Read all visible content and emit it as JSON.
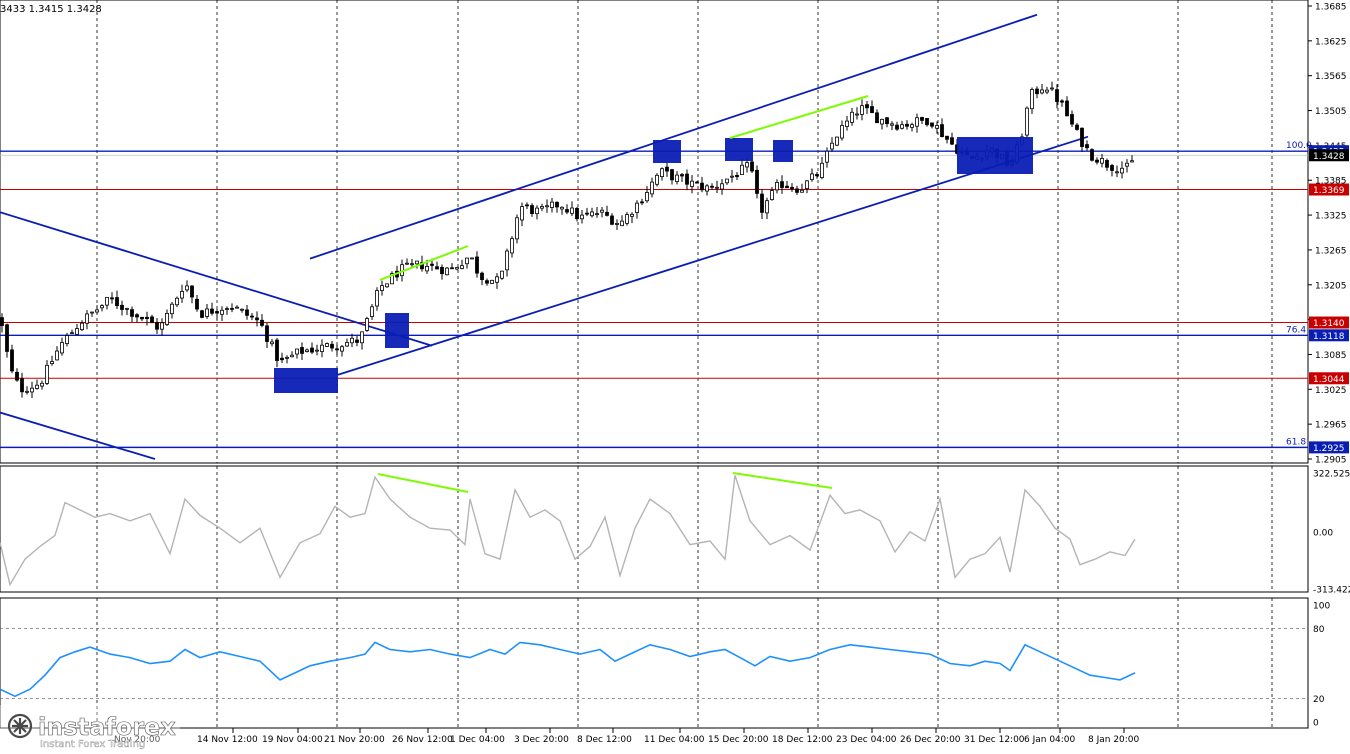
{
  "header": {
    "ohlc_text": "3433 1.3415 1.3428"
  },
  "logo": {
    "brand": "instaforex",
    "tagline": "Instant Forex Trading"
  },
  "colors": {
    "bull": "#000000",
    "bear": "#000000",
    "channel": "#0a1eb4",
    "support": "#0a1eb4",
    "resistance": "#c80000",
    "divergence": "#7cfc00",
    "cci": "#b4b4b4",
    "rsi": "#1e90ff",
    "grid": "#000000",
    "box": "#0a1eb4"
  },
  "chart_data": [
    {
      "type": "candlestick",
      "name": "main",
      "y_ticks": [
        "1.3685",
        "1.3625",
        "1.3565",
        "1.3505",
        "1.3445",
        "1.3385",
        "1.3325",
        "1.3265",
        "1.3205",
        "1.3145",
        "1.3085",
        "1.3025",
        "1.2965",
        "1.2905"
      ],
      "x_labels": [
        "Nov 20:00",
        "14 Nov 12:00",
        "19 Nov 04:00",
        "21 Nov 20:00",
        "26 Nov 12:00",
        "1 Dec 04:00",
        "3 Dec 20:00",
        "8 Dec 12:00",
        "11 Dec 04:00",
        "15 Dec 20:00",
        "18 Dec 12:00",
        "23 Dec 04:00",
        "26 Dec 20:00",
        "31 Dec 12:00",
        "6 Jan 04:00",
        "8 Jan 20:00"
      ],
      "ylim": [
        1.2895,
        1.3705
      ],
      "levels": [
        {
          "price": 1.3435,
          "label": "1.3435",
          "fib": "100.0",
          "kind": "support"
        },
        {
          "price": 1.3369,
          "label": "1.3369",
          "kind": "resistance"
        },
        {
          "price": 1.314,
          "label": "1.3140",
          "kind": "resistance"
        },
        {
          "price": 1.3118,
          "label": "1.3118",
          "fib": "76.4",
          "kind": "support"
        },
        {
          "price": 1.3044,
          "label": "1.3044",
          "kind": "resistance"
        },
        {
          "price": 1.2925,
          "label": "1.2925",
          "fib": "61.8",
          "kind": "support"
        }
      ],
      "current_price": {
        "price": 1.3428,
        "label": "1.3428"
      },
      "close_path": [
        [
          0,
          1.315
        ],
        [
          10,
          1.306
        ],
        [
          20,
          1.3025
        ],
        [
          40,
          1.3035
        ],
        [
          60,
          1.31
        ],
        [
          80,
          1.314
        ],
        [
          110,
          1.318
        ],
        [
          130,
          1.316
        ],
        [
          160,
          1.313
        ],
        [
          185,
          1.321
        ],
        [
          200,
          1.3155
        ],
        [
          230,
          1.317
        ],
        [
          260,
          1.314
        ],
        [
          280,
          1.307
        ],
        [
          300,
          1.309
        ],
        [
          330,
          1.31
        ],
        [
          360,
          1.311
        ],
        [
          380,
          1.32
        ],
        [
          400,
          1.323
        ],
        [
          420,
          1.324
        ],
        [
          450,
          1.323
        ],
        [
          470,
          1.3255
        ],
        [
          480,
          1.322
        ],
        [
          500,
          1.321
        ],
        [
          520,
          1.334
        ],
        [
          540,
          1.333
        ],
        [
          560,
          1.3345
        ],
        [
          580,
          1.332
        ],
        [
          600,
          1.333
        ],
        [
          620,
          1.331
        ],
        [
          640,
          1.335
        ],
        [
          660,
          1.34
        ],
        [
          690,
          1.338
        ],
        [
          710,
          1.337
        ],
        [
          735,
          1.3395
        ],
        [
          750,
          1.341
        ],
        [
          760,
          1.333
        ],
        [
          780,
          1.338
        ],
        [
          800,
          1.337
        ],
        [
          820,
          1.34
        ],
        [
          835,
          1.346
        ],
        [
          860,
          1.351
        ],
        [
          880,
          1.349
        ],
        [
          900,
          1.348
        ],
        [
          930,
          1.349
        ],
        [
          950,
          1.345
        ],
        [
          970,
          1.342
        ],
        [
          990,
          1.344
        ],
        [
          1010,
          1.341
        ],
        [
          1020,
          1.345
        ],
        [
          1030,
          1.353
        ],
        [
          1045,
          1.355
        ],
        [
          1060,
          1.352
        ],
        [
          1075,
          1.347
        ],
        [
          1090,
          1.343
        ],
        [
          1110,
          1.341
        ],
        [
          1130,
          1.3405
        ],
        [
          1135,
          1.3428
        ]
      ],
      "channel_upper": [
        [
          1.325,
          1.367
        ]
      ],
      "channel_lower": [
        [
          1.305,
          1.346
        ]
      ],
      "down_trend": [
        [
          1.333,
          1.31
        ]
      ],
      "down_trend_lower": [
        [
          1.2985,
          1.2905
        ]
      ]
    },
    {
      "type": "line",
      "name": "cci",
      "y_ticks": [
        "322.5258",
        "0.00",
        "-313.4220"
      ],
      "ylim": [
        -313.422,
        322.5258
      ],
      "series_path": [
        [
          0,
          -60
        ],
        [
          10,
          -290
        ],
        [
          25,
          -150
        ],
        [
          40,
          -80
        ],
        [
          55,
          -20
        ],
        [
          65,
          160
        ],
        [
          80,
          120
        ],
        [
          95,
          80
        ],
        [
          110,
          100
        ],
        [
          130,
          60
        ],
        [
          150,
          100
        ],
        [
          170,
          -120
        ],
        [
          185,
          180
        ],
        [
          200,
          90
        ],
        [
          220,
          20
        ],
        [
          240,
          -60
        ],
        [
          260,
          20
        ],
        [
          280,
          -250
        ],
        [
          300,
          -60
        ],
        [
          320,
          -10
        ],
        [
          335,
          140
        ],
        [
          350,
          80
        ],
        [
          365,
          100
        ],
        [
          375,
          300
        ],
        [
          390,
          180
        ],
        [
          410,
          80
        ],
        [
          430,
          20
        ],
        [
          450,
          10
        ],
        [
          465,
          -70
        ],
        [
          470,
          180
        ],
        [
          485,
          -120
        ],
        [
          500,
          -150
        ],
        [
          515,
          230
        ],
        [
          530,
          80
        ],
        [
          545,
          120
        ],
        [
          560,
          60
        ],
        [
          575,
          -150
        ],
        [
          590,
          -80
        ],
        [
          605,
          80
        ],
        [
          620,
          -240
        ],
        [
          635,
          20
        ],
        [
          650,
          180
        ],
        [
          670,
          100
        ],
        [
          690,
          -70
        ],
        [
          710,
          -50
        ],
        [
          725,
          -150
        ],
        [
          735,
          310
        ],
        [
          750,
          60
        ],
        [
          770,
          -70
        ],
        [
          790,
          -20
        ],
        [
          810,
          -100
        ],
        [
          830,
          200
        ],
        [
          845,
          100
        ],
        [
          860,
          120
        ],
        [
          880,
          60
        ],
        [
          895,
          -110
        ],
        [
          910,
          0
        ],
        [
          925,
          -50
        ],
        [
          940,
          180
        ],
        [
          955,
          -250
        ],
        [
          970,
          -150
        ],
        [
          985,
          -120
        ],
        [
          1000,
          -30
        ],
        [
          1010,
          -220
        ],
        [
          1025,
          230
        ],
        [
          1040,
          140
        ],
        [
          1055,
          20
        ],
        [
          1070,
          -40
        ],
        [
          1080,
          -180
        ],
        [
          1095,
          -150
        ],
        [
          1110,
          -110
        ],
        [
          1125,
          -130
        ],
        [
          1135,
          -40
        ]
      ]
    },
    {
      "type": "line",
      "name": "rsi",
      "y_ticks": [
        "100",
        "80",
        "20",
        "0"
      ],
      "ylim": [
        0,
        100
      ],
      "series_path": [
        [
          0,
          28
        ],
        [
          15,
          22
        ],
        [
          30,
          28
        ],
        [
          45,
          40
        ],
        [
          60,
          55
        ],
        [
          75,
          60
        ],
        [
          90,
          64
        ],
        [
          110,
          58
        ],
        [
          130,
          55
        ],
        [
          150,
          50
        ],
        [
          170,
          52
        ],
        [
          185,
          62
        ],
        [
          200,
          55
        ],
        [
          220,
          60
        ],
        [
          240,
          56
        ],
        [
          260,
          52
        ],
        [
          280,
          36
        ],
        [
          295,
          42
        ],
        [
          310,
          48
        ],
        [
          330,
          52
        ],
        [
          350,
          55
        ],
        [
          365,
          58
        ],
        [
          375,
          68
        ],
        [
          390,
          62
        ],
        [
          410,
          60
        ],
        [
          430,
          62
        ],
        [
          450,
          58
        ],
        [
          470,
          55
        ],
        [
          490,
          62
        ],
        [
          505,
          58
        ],
        [
          520,
          68
        ],
        [
          540,
          66
        ],
        [
          560,
          62
        ],
        [
          580,
          58
        ],
        [
          600,
          62
        ],
        [
          615,
          52
        ],
        [
          630,
          58
        ],
        [
          650,
          66
        ],
        [
          670,
          62
        ],
        [
          690,
          56
        ],
        [
          710,
          60
        ],
        [
          725,
          62
        ],
        [
          740,
          55
        ],
        [
          755,
          48
        ],
        [
          770,
          56
        ],
        [
          790,
          52
        ],
        [
          810,
          55
        ],
        [
          830,
          62
        ],
        [
          850,
          66
        ],
        [
          870,
          64
        ],
        [
          890,
          62
        ],
        [
          910,
          60
        ],
        [
          930,
          58
        ],
        [
          950,
          50
        ],
        [
          970,
          48
        ],
        [
          985,
          52
        ],
        [
          1000,
          50
        ],
        [
          1010,
          44
        ],
        [
          1025,
          66
        ],
        [
          1040,
          60
        ],
        [
          1060,
          52
        ],
        [
          1075,
          46
        ],
        [
          1090,
          40
        ],
        [
          1105,
          38
        ],
        [
          1120,
          36
        ],
        [
          1135,
          42
        ]
      ]
    }
  ]
}
